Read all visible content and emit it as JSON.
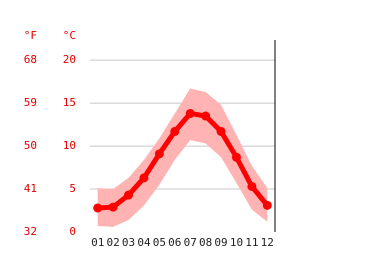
{
  "chart_data": {
    "type": "line",
    "y_label": "°C",
    "y2_label": "°F",
    "categories": [
      "01",
      "02",
      "03",
      "04",
      "05",
      "06",
      "07",
      "08",
      "09",
      "10",
      "11",
      "12"
    ],
    "series": [
      {
        "color": "#ff0000",
        "values": [
          2.8,
          2.9,
          4.3,
          6.3,
          9.1,
          11.7,
          13.8,
          13.5,
          11.7,
          8.7,
          5.3,
          3.1
        ]
      }
    ],
    "band": {
      "color": "#ffb3b3",
      "high": [
        5.1,
        5.0,
        6.3,
        8.4,
        10.9,
        13.8,
        16.7,
        16.3,
        14.8,
        11.3,
        7.7,
        5.1
      ],
      "low": [
        0.7,
        0.6,
        1.4,
        3.1,
        5.5,
        8.4,
        10.7,
        10.3,
        8.7,
        5.7,
        2.6,
        1.2
      ]
    },
    "ylim": [
      0,
      22
    ],
    "yticks": [
      0,
      5,
      10,
      15,
      20
    ],
    "y2lim": [
      32,
      71.6
    ],
    "y2ticks": [
      32,
      41,
      50,
      59,
      68
    ],
    "grid": true
  }
}
